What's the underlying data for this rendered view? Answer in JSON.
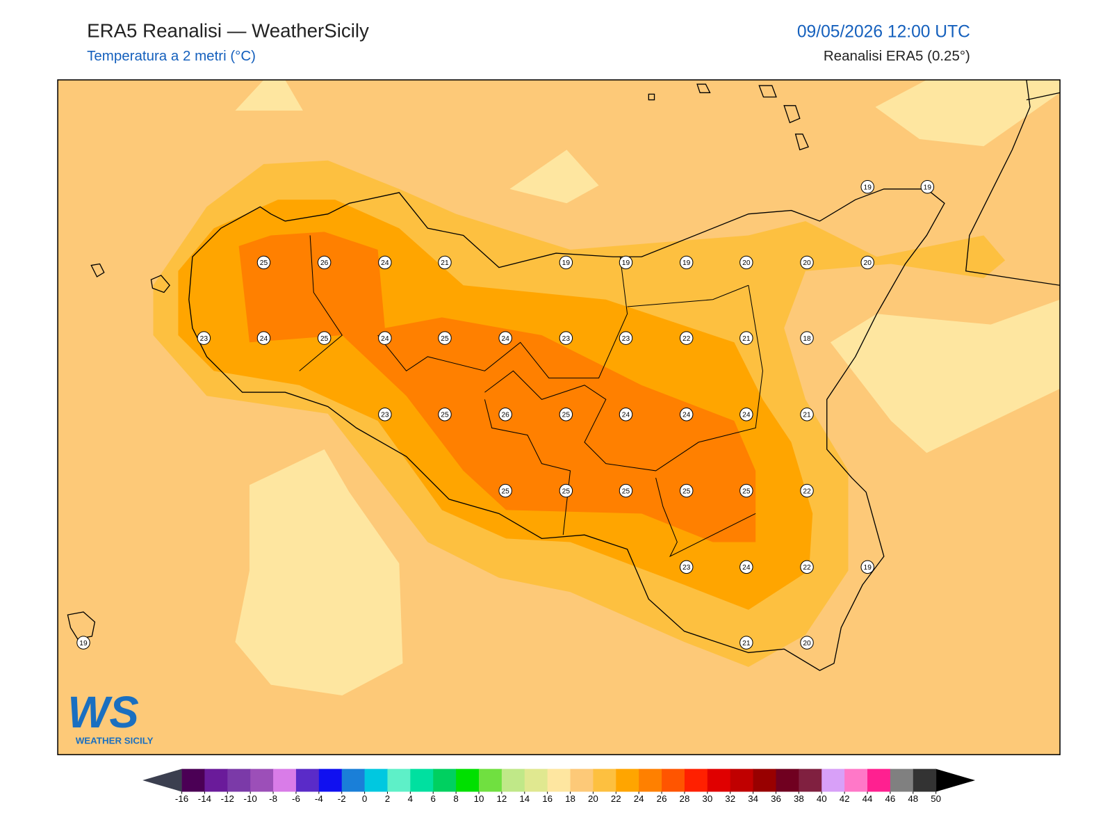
{
  "header": {
    "title": "ERA5 Reanalisi — WeatherSicily",
    "subtitle": "Temperatura a 2 metri (°C)",
    "datetime": "09/05/2026 12:00 UTC",
    "source": "Reanalisi ERA5 (0.25°)"
  },
  "stations": [
    19,
    19,
    25,
    26,
    24,
    21,
    19,
    19,
    19,
    20,
    20,
    20,
    23,
    24,
    25,
    24,
    25,
    24,
    23,
    23,
    22,
    21,
    18,
    23,
    25,
    26,
    25,
    24,
    24,
    24,
    21,
    25,
    25,
    25,
    25,
    25,
    22,
    23,
    24,
    22,
    19,
    19,
    21,
    20
  ],
  "colorbar": {
    "ticks": [
      -16,
      -14,
      -12,
      -10,
      -8,
      -6,
      -4,
      -2,
      0,
      2,
      4,
      6,
      8,
      10,
      12,
      14,
      16,
      18,
      20,
      22,
      24,
      26,
      28,
      30,
      32,
      34,
      36,
      38,
      40,
      42,
      44,
      46,
      48,
      50
    ],
    "colors": [
      "#4b0055",
      "#6a1b9a",
      "#7b3aa8",
      "#9c4fb8",
      "#d97ce8",
      "#5a2bc8",
      "#1010f0",
      "#1a7fd8",
      "#00c8e0",
      "#5ef0c8",
      "#00e0a0",
      "#00d060",
      "#00e000",
      "#70e040",
      "#c0e888",
      "#e0e890",
      "#fee6a0",
      "#fdc978",
      "#fdc040",
      "#ffa500",
      "#ff8000",
      "#ff5500",
      "#ff2000",
      "#e00000",
      "#c00000",
      "#980000",
      "#700020",
      "#802040",
      "#d8a0f8",
      "#ff78c8",
      "#ff2090",
      "#808080",
      "#333333"
    ]
  },
  "logo": {
    "mark": "WS",
    "text": "WEATHER SICILY"
  }
}
